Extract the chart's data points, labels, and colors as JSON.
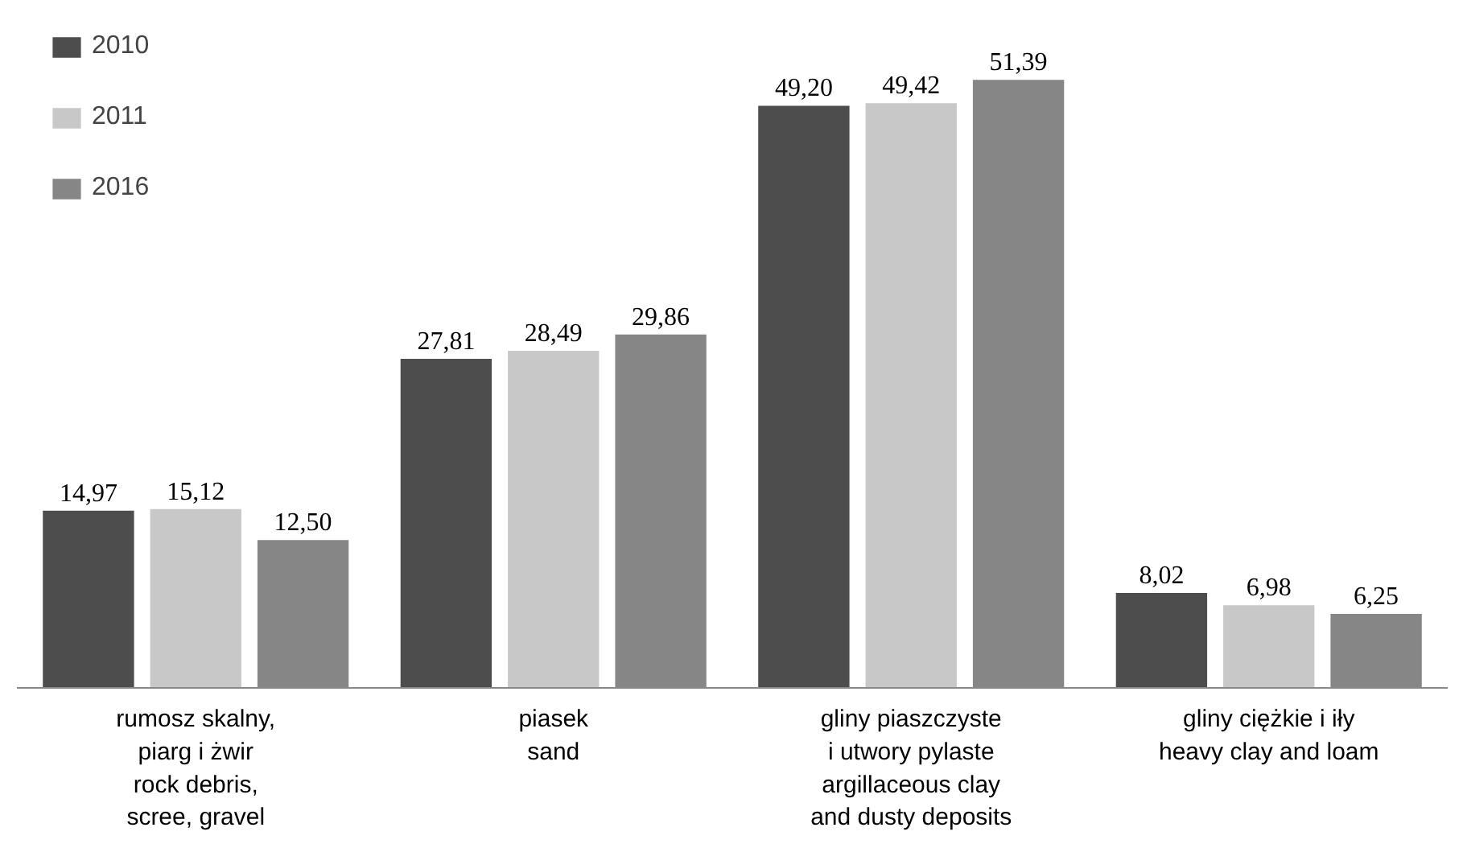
{
  "chart_data": {
    "type": "bar",
    "categories": [
      "rumosz skalny,\npiarg i żwir\nrock debris,\nscree, gravel",
      "piasek\nsand",
      "gliny piaszczyste\ni utwory pylaste\nargillaceous clay\nand dusty deposits",
      "gliny ciężkie i iły\nheavy clay and loam"
    ],
    "series": [
      {
        "name": "2010",
        "color": "#4d4d4d",
        "values": [
          14.97,
          27.81,
          49.2,
          8.02
        ],
        "value_labels": [
          "14,97",
          "27,81",
          "49,20",
          "8,02"
        ]
      },
      {
        "name": "2011",
        "color": "#c8c8c8",
        "values": [
          15.12,
          28.49,
          49.42,
          6.98
        ],
        "value_labels": [
          "15,12",
          "28,49",
          "49,42",
          "6,98"
        ]
      },
      {
        "name": "2016",
        "color": "#868686",
        "values": [
          12.5,
          29.86,
          51.39,
          6.25
        ],
        "value_labels": [
          "12,50",
          "29,86",
          "51,39",
          "6,25"
        ]
      }
    ],
    "legend": "top left",
    "grid": false
  }
}
